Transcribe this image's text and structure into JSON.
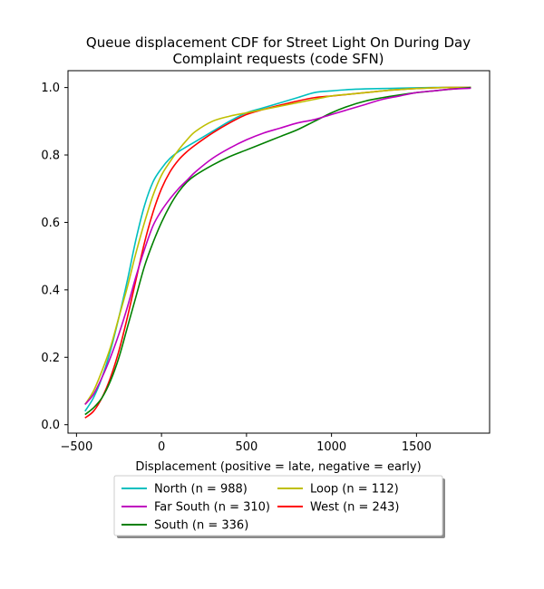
{
  "chart_data": {
    "type": "line",
    "title": [
      "Queue displacement CDF for Street Light On During Day",
      "Complaint  requests (code SFN)"
    ],
    "xlabel": "Displacement (positive = late, negative = early)",
    "ylabel": "",
    "xlim": [
      -550,
      1930
    ],
    "ylim": [
      -0.025,
      1.05
    ],
    "xticks": [
      -500,
      0,
      500,
      1000,
      1500
    ],
    "xtick_labels": [
      "−500",
      "0",
      "500",
      "1000",
      "1500"
    ],
    "yticks": [
      0.0,
      0.2,
      0.4,
      0.6,
      0.8,
      1.0
    ],
    "ytick_labels": [
      "0.0",
      "0.2",
      "0.4",
      "0.6",
      "0.8",
      "1.0"
    ],
    "grid": false,
    "legend_placement": "bottom-center",
    "series": [
      {
        "name": "North (n = 988)",
        "color": "#00bfbf",
        "x": [
          -450,
          -400,
          -350,
          -300,
          -250,
          -200,
          -150,
          -100,
          -50,
          0,
          50,
          100,
          150,
          200,
          300,
          400,
          500,
          600,
          700,
          800,
          900,
          1000,
          1100,
          1200,
          1300,
          1400,
          1500,
          1600,
          1700,
          1820
        ],
        "y": [
          0.04,
          0.08,
          0.14,
          0.22,
          0.32,
          0.43,
          0.55,
          0.65,
          0.72,
          0.76,
          0.79,
          0.81,
          0.825,
          0.84,
          0.87,
          0.9,
          0.925,
          0.94,
          0.955,
          0.97,
          0.985,
          0.99,
          0.994,
          0.996,
          0.997,
          0.998,
          0.999,
          1.0,
          1.0,
          1.0
        ]
      },
      {
        "name": "West (n = 243)",
        "color": "#ff0000",
        "x": [
          -450,
          -400,
          -350,
          -300,
          -250,
          -200,
          -150,
          -100,
          -50,
          0,
          50,
          100,
          150,
          200,
          300,
          400,
          500,
          600,
          700,
          800,
          900,
          1000,
          1100,
          1200,
          1300,
          1400,
          1500,
          1600,
          1700,
          1820
        ],
        "y": [
          0.02,
          0.04,
          0.08,
          0.14,
          0.22,
          0.32,
          0.43,
          0.54,
          0.63,
          0.7,
          0.75,
          0.785,
          0.81,
          0.83,
          0.865,
          0.895,
          0.92,
          0.935,
          0.948,
          0.96,
          0.97,
          0.975,
          0.98,
          0.985,
          0.99,
          0.994,
          0.997,
          0.999,
          1.0,
          1.0
        ]
      },
      {
        "name": "Loop (n = 112)",
        "color": "#bfbf00",
        "x": [
          -450,
          -400,
          -350,
          -300,
          -250,
          -200,
          -150,
          -100,
          -50,
          0,
          50,
          100,
          150,
          200,
          300,
          400,
          500,
          600,
          700,
          800,
          900,
          1000,
          1100,
          1200,
          1300,
          1400,
          1500,
          1600,
          1700,
          1820
        ],
        "y": [
          0.06,
          0.1,
          0.16,
          0.23,
          0.32,
          0.41,
          0.51,
          0.6,
          0.68,
          0.74,
          0.78,
          0.815,
          0.845,
          0.87,
          0.9,
          0.915,
          0.925,
          0.935,
          0.945,
          0.955,
          0.965,
          0.975,
          0.98,
          0.985,
          0.99,
          0.994,
          0.997,
          0.999,
          1.0,
          1.0
        ]
      },
      {
        "name": "South (n = 336)",
        "color": "#008000",
        "x": [
          -450,
          -400,
          -350,
          -300,
          -250,
          -200,
          -150,
          -100,
          -50,
          0,
          50,
          100,
          150,
          200,
          300,
          400,
          500,
          600,
          700,
          800,
          900,
          1000,
          1100,
          1200,
          1300,
          1400,
          1500,
          1600,
          1700,
          1820
        ],
        "y": [
          0.03,
          0.05,
          0.08,
          0.13,
          0.2,
          0.29,
          0.38,
          0.47,
          0.54,
          0.6,
          0.65,
          0.69,
          0.72,
          0.74,
          0.77,
          0.795,
          0.815,
          0.835,
          0.855,
          0.875,
          0.9,
          0.925,
          0.945,
          0.96,
          0.97,
          0.978,
          0.985,
          0.99,
          0.995,
          1.0
        ]
      },
      {
        "name": "Far South (n = 310)",
        "color": "#bf00bf",
        "x": [
          -450,
          -400,
          -350,
          -300,
          -250,
          -200,
          -150,
          -100,
          -50,
          0,
          50,
          100,
          150,
          200,
          300,
          400,
          500,
          600,
          700,
          800,
          900,
          1000,
          1100,
          1200,
          1300,
          1400,
          1500,
          1600,
          1700,
          1820
        ],
        "y": [
          0.06,
          0.09,
          0.14,
          0.2,
          0.27,
          0.35,
          0.44,
          0.52,
          0.59,
          0.635,
          0.67,
          0.7,
          0.725,
          0.75,
          0.79,
          0.82,
          0.845,
          0.865,
          0.88,
          0.895,
          0.905,
          0.92,
          0.935,
          0.95,
          0.965,
          0.975,
          0.985,
          0.99,
          0.995,
          0.998
        ]
      }
    ]
  }
}
